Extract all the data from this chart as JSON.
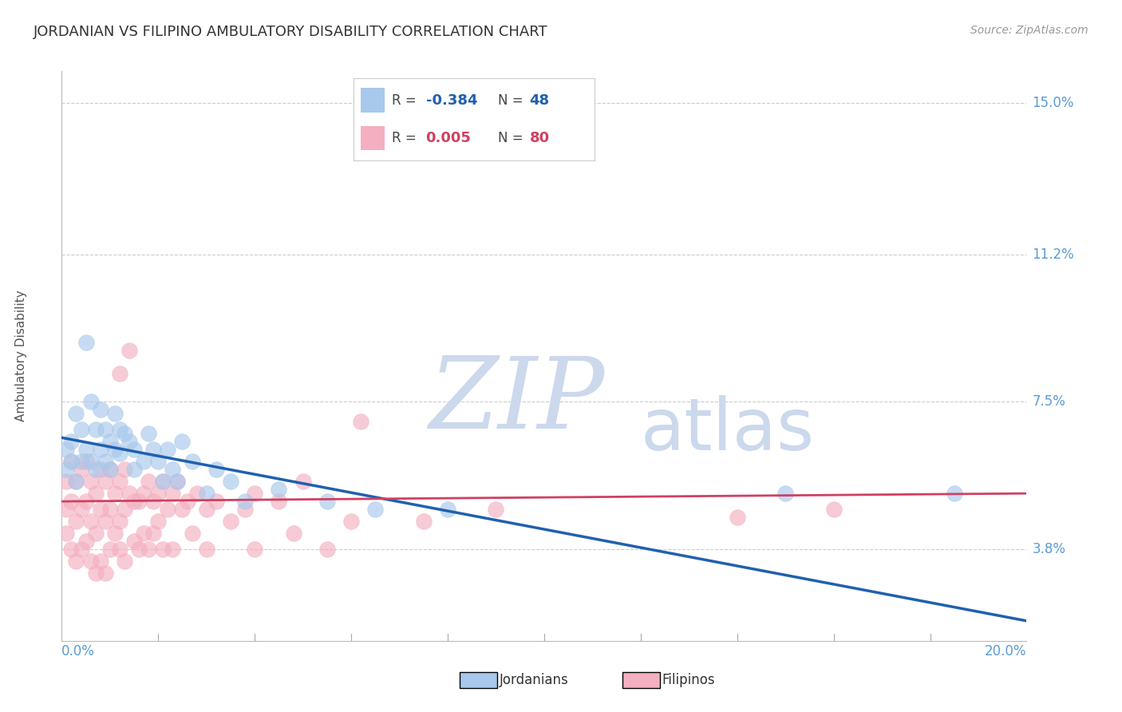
{
  "title": "JORDANIAN VS FILIPINO AMBULATORY DISABILITY CORRELATION CHART",
  "source": "Source: ZipAtlas.com",
  "ylabel": "Ambulatory Disability",
  "yticks": [
    0.038,
    0.075,
    0.112,
    0.15
  ],
  "ytick_labels": [
    "3.8%",
    "7.5%",
    "11.2%",
    "15.0%"
  ],
  "xmin": 0.0,
  "xmax": 0.2,
  "ymin": 0.015,
  "ymax": 0.158,
  "legend_R_jordan": "-0.384",
  "legend_N_jordan": "48",
  "legend_R_filipino": "0.005",
  "legend_N_filipino": "80",
  "jordan_color": "#a8c8ec",
  "filipino_color": "#f4afc0",
  "jordan_line_color": "#2060b0",
  "filipino_line_color": "#d04060",
  "background_color": "#ffffff",
  "watermark_ZIP": "ZIP",
  "watermark_atlas": "atlas",
  "watermark_color": "#ccd8ec",
  "jordan_scatter": [
    [
      0.001,
      0.063
    ],
    [
      0.001,
      0.058
    ],
    [
      0.002,
      0.065
    ],
    [
      0.002,
      0.06
    ],
    [
      0.003,
      0.072
    ],
    [
      0.003,
      0.055
    ],
    [
      0.004,
      0.068
    ],
    [
      0.004,
      0.06
    ],
    [
      0.005,
      0.09
    ],
    [
      0.005,
      0.063
    ],
    [
      0.006,
      0.075
    ],
    [
      0.006,
      0.06
    ],
    [
      0.007,
      0.068
    ],
    [
      0.007,
      0.058
    ],
    [
      0.008,
      0.073
    ],
    [
      0.008,
      0.063
    ],
    [
      0.009,
      0.068
    ],
    [
      0.009,
      0.06
    ],
    [
      0.01,
      0.065
    ],
    [
      0.01,
      0.058
    ],
    [
      0.011,
      0.072
    ],
    [
      0.011,
      0.063
    ],
    [
      0.012,
      0.068
    ],
    [
      0.012,
      0.062
    ],
    [
      0.013,
      0.067
    ],
    [
      0.014,
      0.065
    ],
    [
      0.015,
      0.063
    ],
    [
      0.015,
      0.058
    ],
    [
      0.017,
      0.06
    ],
    [
      0.018,
      0.067
    ],
    [
      0.019,
      0.063
    ],
    [
      0.02,
      0.06
    ],
    [
      0.021,
      0.055
    ],
    [
      0.022,
      0.063
    ],
    [
      0.023,
      0.058
    ],
    [
      0.024,
      0.055
    ],
    [
      0.025,
      0.065
    ],
    [
      0.027,
      0.06
    ],
    [
      0.03,
      0.052
    ],
    [
      0.032,
      0.058
    ],
    [
      0.035,
      0.055
    ],
    [
      0.038,
      0.05
    ],
    [
      0.045,
      0.053
    ],
    [
      0.055,
      0.05
    ],
    [
      0.065,
      0.048
    ],
    [
      0.08,
      0.048
    ],
    [
      0.15,
      0.052
    ],
    [
      0.185,
      0.052
    ]
  ],
  "filipino_scatter": [
    [
      0.001,
      0.055
    ],
    [
      0.001,
      0.048
    ],
    [
      0.001,
      0.042
    ],
    [
      0.002,
      0.06
    ],
    [
      0.002,
      0.05
    ],
    [
      0.002,
      0.038
    ],
    [
      0.003,
      0.055
    ],
    [
      0.003,
      0.045
    ],
    [
      0.003,
      0.035
    ],
    [
      0.004,
      0.058
    ],
    [
      0.004,
      0.048
    ],
    [
      0.004,
      0.038
    ],
    [
      0.005,
      0.06
    ],
    [
      0.005,
      0.05
    ],
    [
      0.005,
      0.04
    ],
    [
      0.006,
      0.055
    ],
    [
      0.006,
      0.045
    ],
    [
      0.006,
      0.035
    ],
    [
      0.007,
      0.052
    ],
    [
      0.007,
      0.042
    ],
    [
      0.007,
      0.032
    ],
    [
      0.008,
      0.058
    ],
    [
      0.008,
      0.048
    ],
    [
      0.008,
      0.035
    ],
    [
      0.009,
      0.055
    ],
    [
      0.009,
      0.045
    ],
    [
      0.009,
      0.032
    ],
    [
      0.01,
      0.058
    ],
    [
      0.01,
      0.048
    ],
    [
      0.01,
      0.038
    ],
    [
      0.011,
      0.052
    ],
    [
      0.011,
      0.042
    ],
    [
      0.012,
      0.082
    ],
    [
      0.012,
      0.055
    ],
    [
      0.012,
      0.045
    ],
    [
      0.012,
      0.038
    ],
    [
      0.013,
      0.058
    ],
    [
      0.013,
      0.048
    ],
    [
      0.013,
      0.035
    ],
    [
      0.014,
      0.088
    ],
    [
      0.014,
      0.052
    ],
    [
      0.015,
      0.05
    ],
    [
      0.015,
      0.04
    ],
    [
      0.016,
      0.05
    ],
    [
      0.016,
      0.038
    ],
    [
      0.017,
      0.052
    ],
    [
      0.017,
      0.042
    ],
    [
      0.018,
      0.055
    ],
    [
      0.018,
      0.038
    ],
    [
      0.019,
      0.05
    ],
    [
      0.019,
      0.042
    ],
    [
      0.02,
      0.052
    ],
    [
      0.02,
      0.045
    ],
    [
      0.021,
      0.055
    ],
    [
      0.021,
      0.038
    ],
    [
      0.022,
      0.048
    ],
    [
      0.023,
      0.052
    ],
    [
      0.023,
      0.038
    ],
    [
      0.024,
      0.055
    ],
    [
      0.025,
      0.048
    ],
    [
      0.026,
      0.05
    ],
    [
      0.027,
      0.042
    ],
    [
      0.028,
      0.052
    ],
    [
      0.03,
      0.048
    ],
    [
      0.03,
      0.038
    ],
    [
      0.032,
      0.05
    ],
    [
      0.035,
      0.045
    ],
    [
      0.038,
      0.048
    ],
    [
      0.04,
      0.052
    ],
    [
      0.04,
      0.038
    ],
    [
      0.045,
      0.05
    ],
    [
      0.048,
      0.042
    ],
    [
      0.05,
      0.055
    ],
    [
      0.055,
      0.038
    ],
    [
      0.06,
      0.045
    ],
    [
      0.062,
      0.07
    ],
    [
      0.075,
      0.045
    ],
    [
      0.09,
      0.048
    ],
    [
      0.14,
      0.046
    ],
    [
      0.16,
      0.048
    ]
  ],
  "jordan_line_x": [
    0.0,
    0.2
  ],
  "jordan_line_y": [
    0.066,
    0.02
  ],
  "filipino_line_x": [
    0.0,
    0.2
  ],
  "filipino_line_y": [
    0.05,
    0.052
  ]
}
